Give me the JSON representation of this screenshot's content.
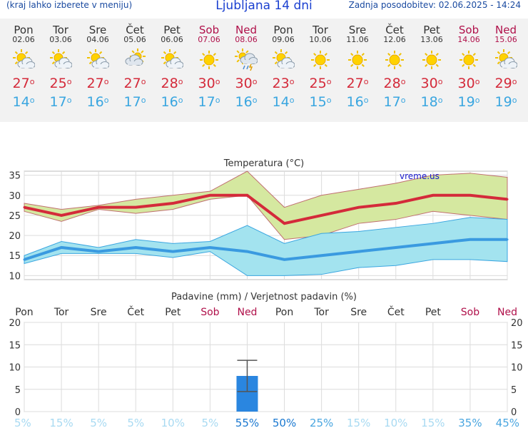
{
  "header": {
    "note": "(kraj lahko izberete v meniju)",
    "title": "Ljubljana 14 dni",
    "updated": "Zadnja posodobitev: 02.06.2025 - 14:24"
  },
  "days": [
    {
      "name": "Pon",
      "date": "02.06",
      "weekend": false,
      "icon": "sun-cloud-icon",
      "tmax": "27",
      "tmin": "14"
    },
    {
      "name": "Tor",
      "date": "03.06",
      "weekend": false,
      "icon": "sun-cloud-icon",
      "tmax": "25",
      "tmin": "17"
    },
    {
      "name": "Sre",
      "date": "04.06",
      "weekend": false,
      "icon": "sun-cloud-icon",
      "tmax": "27",
      "tmin": "16"
    },
    {
      "name": "Čet",
      "date": "05.06",
      "weekend": false,
      "icon": "cloud-sun-icon",
      "tmax": "27",
      "tmin": "17"
    },
    {
      "name": "Pet",
      "date": "06.06",
      "weekend": false,
      "icon": "sun-cloud-icon",
      "tmax": "28",
      "tmin": "16"
    },
    {
      "name": "Sob",
      "date": "07.06",
      "weekend": true,
      "icon": "sun-icon",
      "tmax": "30",
      "tmin": "17"
    },
    {
      "name": "Ned",
      "date": "08.06",
      "weekend": true,
      "icon": "sun-storm-icon",
      "tmax": "30",
      "tmin": "16"
    },
    {
      "name": "Pon",
      "date": "09.06",
      "weekend": false,
      "icon": "sun-cloud-icon",
      "tmax": "23",
      "tmin": "14"
    },
    {
      "name": "Tor",
      "date": "10.06",
      "weekend": false,
      "icon": "sun-icon",
      "tmax": "25",
      "tmin": "15"
    },
    {
      "name": "Sre",
      "date": "11.06",
      "weekend": false,
      "icon": "sun-icon",
      "tmax": "27",
      "tmin": "16"
    },
    {
      "name": "Čet",
      "date": "12.06",
      "weekend": false,
      "icon": "sun-icon",
      "tmax": "28",
      "tmin": "17"
    },
    {
      "name": "Pet",
      "date": "13.06",
      "weekend": false,
      "icon": "sun-icon",
      "tmax": "30",
      "tmin": "18"
    },
    {
      "name": "Sob",
      "date": "14.06",
      "weekend": true,
      "icon": "sun-icon",
      "tmax": "30",
      "tmin": "19"
    },
    {
      "name": "Ned",
      "date": "15.06",
      "weekend": true,
      "icon": "sun-cloud-icon",
      "tmax": "29",
      "tmin": "19"
    }
  ],
  "colors": {
    "tmax": "#d42a3a",
    "tmin": "#3aa6e0",
    "weekend": "#b0104a",
    "band_max": "#d5e8a0",
    "band_min": "#a3e3ef",
    "precip_bar": "#2a86e0"
  },
  "chart_data": [
    {
      "type": "line",
      "title": "Temperatura (°C)",
      "watermark": "vreme.us",
      "ylim": [
        9,
        36
      ],
      "yticks": [
        10,
        15,
        20,
        25,
        30,
        35
      ],
      "grid": true,
      "series": [
        {
          "role": "tmax",
          "values": [
            27,
            25,
            27,
            27,
            28,
            30,
            30,
            23,
            25,
            27,
            28,
            30,
            30,
            29
          ]
        },
        {
          "role": "tmax-upper",
          "values": [
            28,
            26.5,
            27.5,
            29,
            30,
            31,
            36,
            27,
            30,
            31.5,
            33,
            35,
            35.5,
            34.5
          ]
        },
        {
          "role": "tmax-lower",
          "values": [
            26,
            23.5,
            26.5,
            25.5,
            26.5,
            29,
            30,
            19,
            20,
            23,
            24,
            26,
            25,
            24
          ]
        },
        {
          "role": "tmin",
          "values": [
            14,
            17,
            16,
            17,
            16,
            17,
            16,
            14,
            15,
            16,
            17,
            18,
            19,
            19
          ]
        },
        {
          "role": "tmin-upper",
          "values": [
            15,
            18.5,
            17,
            19,
            18,
            18.5,
            22.5,
            18,
            20.5,
            21,
            22,
            23,
            24.5,
            24
          ]
        },
        {
          "role": "tmin-lower",
          "values": [
            13,
            15.5,
            15.5,
            15.5,
            14.5,
            16,
            10,
            10,
            10.3,
            12,
            12.5,
            14,
            14,
            13.5
          ]
        }
      ]
    },
    {
      "type": "bar",
      "title": "Padavine (mm) / Verjetnost padavin (%)",
      "categories": [
        "Pon",
        "Tor",
        "Sre",
        "Čet",
        "Pet",
        "Sob",
        "Ned",
        "Pon",
        "Tor",
        "Sre",
        "Čet",
        "Pet",
        "Sob",
        "Ned"
      ],
      "values": [
        0,
        0,
        0,
        0,
        0,
        0,
        8,
        0,
        0,
        0,
        0,
        0,
        0,
        0
      ],
      "error_range": [
        [
          0,
          0
        ],
        [
          0,
          0
        ],
        [
          0,
          0
        ],
        [
          0,
          0
        ],
        [
          0,
          0
        ],
        [
          0,
          0
        ],
        [
          4.5,
          11.5
        ],
        [
          0,
          0
        ],
        [
          0,
          0
        ],
        [
          0,
          0
        ],
        [
          0,
          0
        ],
        [
          0,
          0
        ],
        [
          0,
          0
        ],
        [
          0,
          0
        ]
      ],
      "probability": [
        "5%",
        "15%",
        "5%",
        "5%",
        "10%",
        "5%",
        "55%",
        "50%",
        "25%",
        "15%",
        "10%",
        "15%",
        "35%",
        "45%"
      ],
      "ylim": [
        0,
        20
      ],
      "yticks": [
        0,
        5,
        10,
        15,
        20
      ],
      "grid": true
    }
  ]
}
